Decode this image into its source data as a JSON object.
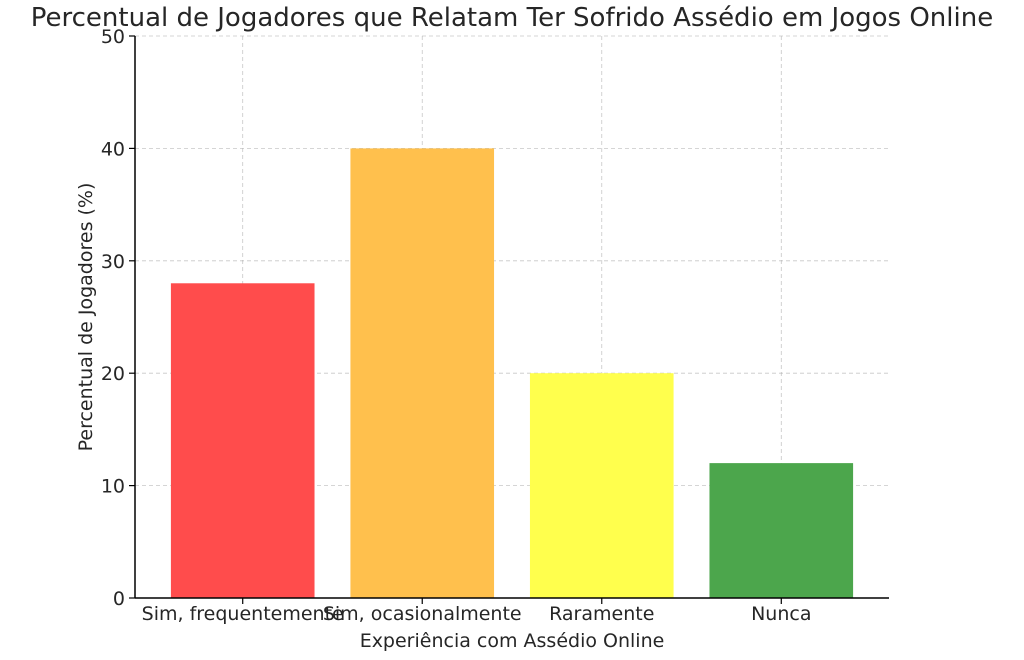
{
  "chart_data": {
    "type": "bar",
    "title": "Percentual de Jogadores que Relatam Ter Sofrido Assédio em Jogos Online",
    "xlabel": "Experiência com Assédio Online",
    "ylabel": "Percentual de Jogadores (%)",
    "categories": [
      "Sim, frequentemente",
      "Sim, ocasionalmente",
      "Raramente",
      "Nunca"
    ],
    "values": [
      28,
      40,
      20,
      12
    ],
    "colors": [
      "#ff4c4c",
      "#ffc04d",
      "#ffff4d",
      "#4ca64c"
    ],
    "ylim": [
      0,
      50
    ],
    "yticks": [
      "0",
      "10",
      "20",
      "30",
      "40",
      "50"
    ],
    "grid": true,
    "legend": "none"
  }
}
